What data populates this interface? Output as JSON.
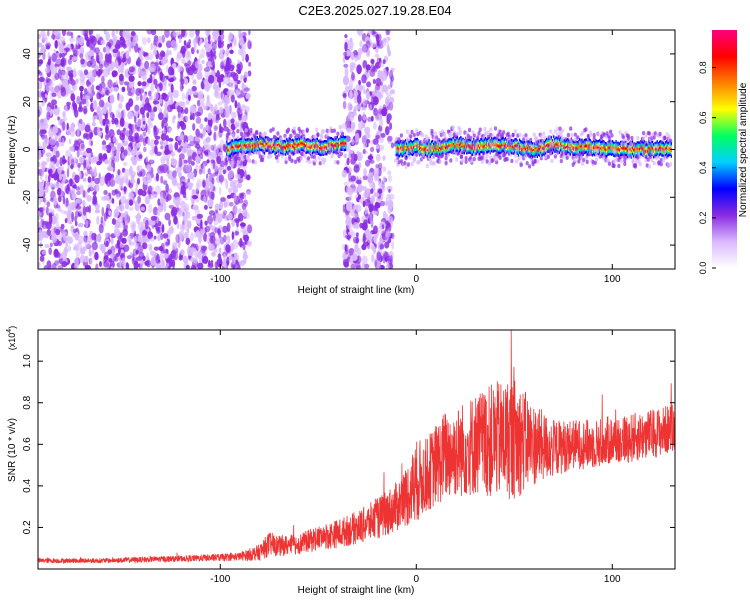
{
  "figure": {
    "title": "C2E3.2025.027.19.28.E04"
  },
  "chart_data": [
    {
      "type": "heatmap",
      "xlabel": "Height of straight line (km)",
      "ylabel": "Frequency (Hz)",
      "xlim": [
        -193,
        132
      ],
      "ylim": [
        -50,
        50
      ],
      "xticks": [
        -100,
        0,
        100
      ],
      "yticks": [
        -40,
        -20,
        0,
        20,
        40
      ],
      "grid": false,
      "colorbar": {
        "label": "Normalized spectral amplitude",
        "range": [
          0.0,
          0.95
        ],
        "ticks": [
          0.0,
          0.2,
          0.4,
          0.6,
          0.8
        ],
        "tick_labels": [
          "0.0",
          "0.2",
          "0.4",
          "0.6",
          "0.8"
        ],
        "colormap": [
          "#ffffff",
          "#d9b8ff",
          "#8a2be2",
          "#0000ff",
          "#00d0ff",
          "#00ff60",
          "#ffff00",
          "#ff8000",
          "#ff0000",
          "#ff0080"
        ]
      },
      "ridge": {
        "description_values": {
          "x": [
            -97,
            -90,
            -80,
            -70,
            -60,
            -50,
            -40,
            -35,
            -10,
            0,
            10,
            20,
            30,
            40,
            50,
            60,
            70,
            80,
            90,
            100,
            110,
            120,
            130
          ],
          "y": [
            0,
            1,
            2,
            1,
            2,
            1,
            2,
            3,
            0,
            1,
            0,
            2,
            1,
            2,
            1,
            0,
            2,
            1,
            1,
            0,
            0,
            0,
            0
          ]
        }
      },
      "noise_regions": [
        {
          "x": [
            -193,
            -85
          ],
          "y": [
            -50,
            50
          ],
          "level": 0.25
        },
        {
          "x": [
            -37,
            -28
          ],
          "y": [
            -50,
            50
          ],
          "level": 0.3
        },
        {
          "x": [
            -27,
            -12
          ],
          "y": [
            -50,
            50
          ],
          "level": 0.3
        }
      ]
    },
    {
      "type": "line",
      "xlabel": "Height of straight line (km)",
      "ylabel": "SNR (10 * v/v)",
      "yscale_label": "(x10",
      "yscale_exp": "4",
      "xlim": [
        -193,
        132
      ],
      "ylim": [
        0,
        1.15
      ],
      "xticks": [
        -100,
        0,
        100
      ],
      "yticks": [
        0.2,
        0.4,
        0.6,
        0.8,
        1.0
      ],
      "ytick_labels": [
        "0.2",
        "0.4",
        "0.6",
        "0.8",
        "1.0"
      ],
      "color": "#ee3333",
      "series": [
        {
          "x": [
            -193,
            -180,
            -160,
            -140,
            -120,
            -100,
            -90,
            -80,
            -75,
            -70,
            -60,
            -50,
            -40,
            -30,
            -20,
            -10,
            -5,
            0,
            5,
            10,
            15,
            20,
            30,
            40,
            50,
            60,
            70,
            80,
            90,
            100,
            110,
            120,
            132
          ],
          "values": [
            0.04,
            0.04,
            0.04,
            0.045,
            0.05,
            0.055,
            0.06,
            0.08,
            0.12,
            0.11,
            0.12,
            0.15,
            0.17,
            0.2,
            0.24,
            0.3,
            0.35,
            0.42,
            0.45,
            0.5,
            0.55,
            0.56,
            0.6,
            0.62,
            0.63,
            0.6,
            0.58,
            0.6,
            0.6,
            0.62,
            0.63,
            0.65,
            0.68
          ],
          "noise": [
            0.012,
            0.012,
            0.012,
            0.014,
            0.015,
            0.018,
            0.02,
            0.04,
            0.06,
            0.05,
            0.05,
            0.06,
            0.07,
            0.08,
            0.1,
            0.12,
            0.15,
            0.2,
            0.18,
            0.2,
            0.22,
            0.22,
            0.25,
            0.28,
            0.3,
            0.2,
            0.14,
            0.12,
            0.12,
            0.12,
            0.12,
            0.12,
            0.12
          ]
        }
      ]
    }
  ]
}
